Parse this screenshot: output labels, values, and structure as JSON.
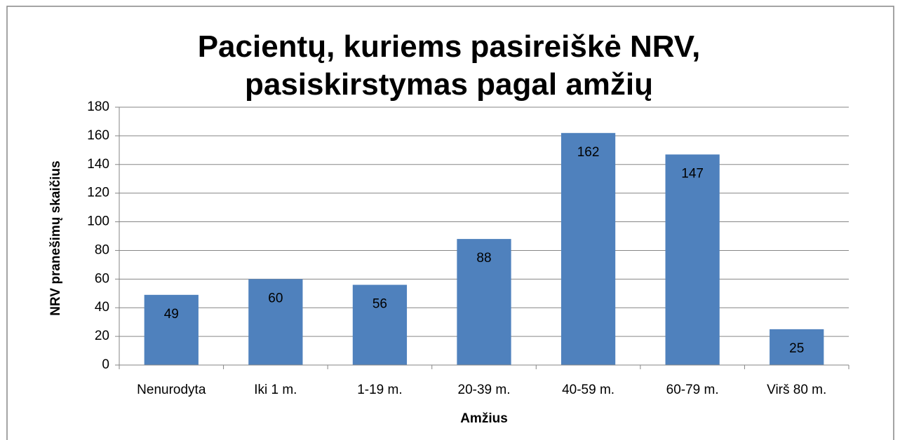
{
  "chart_data": {
    "type": "bar",
    "title": "Pacientų, kuriems pasireiškė NRV, pasiskirstymas pagal amžių",
    "x_label": "Amžius",
    "y_label": "NRV pranešimų skaičius",
    "categories": [
      "Nenurodyta",
      "Iki 1 m.",
      "1-19 m.",
      "20-39 m.",
      "40-59 m.",
      "60-79 m.",
      "Virš 80 m."
    ],
    "values": [
      49,
      60,
      56,
      88,
      162,
      147,
      25
    ],
    "color": "#4f81bd",
    "ylim": [
      0,
      180
    ],
    "yticks": [
      0,
      20,
      40,
      60,
      80,
      100,
      120,
      140,
      160,
      180
    ],
    "grid": true
  }
}
